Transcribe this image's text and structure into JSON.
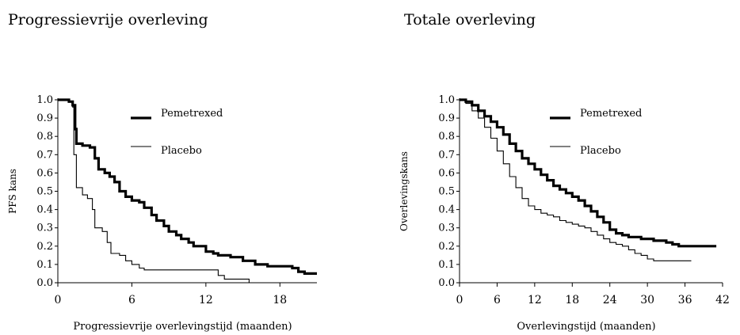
{
  "chart_data": [
    {
      "type": "line",
      "title": "Progressievrije overleving",
      "xlabel": "Progressievrije overlevingstijd (maanden)",
      "ylabel": "PFS kans",
      "xlim": [
        0,
        21
      ],
      "ylim": [
        0,
        1.0
      ],
      "xticks": [
        0,
        6,
        12,
        18
      ],
      "xtick_labels": [
        "0",
        "6",
        "12",
        "18"
      ],
      "yticks": [
        0,
        0.1,
        0.2,
        0.3,
        0.4,
        0.5,
        0.6,
        0.7,
        0.8,
        0.9,
        1.0
      ],
      "ytick_labels": [
        "0.0",
        "0.1",
        "0.2",
        "0.3",
        "0.4",
        "0.5",
        "0.6",
        "0.7",
        "0.8",
        "0.9",
        "1.0"
      ],
      "legend_position": "top-right",
      "grid": false,
      "series": [
        {
          "name": "Pemetrexed",
          "line_width": "thick",
          "color": "#000000",
          "points": [
            [
              0,
              1.0
            ],
            [
              0.5,
              1.0
            ],
            [
              0.9,
              0.99
            ],
            [
              1.2,
              0.97
            ],
            [
              1.4,
              0.84
            ],
            [
              1.5,
              0.76
            ],
            [
              2.0,
              0.75
            ],
            [
              2.6,
              0.74
            ],
            [
              3.0,
              0.68
            ],
            [
              3.3,
              0.62
            ],
            [
              3.8,
              0.6
            ],
            [
              4.2,
              0.58
            ],
            [
              4.6,
              0.55
            ],
            [
              5.0,
              0.5
            ],
            [
              5.5,
              0.47
            ],
            [
              6.0,
              0.45
            ],
            [
              6.6,
              0.44
            ],
            [
              7.0,
              0.41
            ],
            [
              7.6,
              0.37
            ],
            [
              8.0,
              0.34
            ],
            [
              8.6,
              0.31
            ],
            [
              9.0,
              0.28
            ],
            [
              9.6,
              0.26
            ],
            [
              10.0,
              0.24
            ],
            [
              10.6,
              0.22
            ],
            [
              11.0,
              0.2
            ],
            [
              12.0,
              0.17
            ],
            [
              12.6,
              0.16
            ],
            [
              13.0,
              0.15
            ],
            [
              14.0,
              0.14
            ],
            [
              15.0,
              0.12
            ],
            [
              16.0,
              0.1
            ],
            [
              17.0,
              0.09
            ],
            [
              18.5,
              0.09
            ],
            [
              19.0,
              0.08
            ],
            [
              19.5,
              0.06
            ],
            [
              20.0,
              0.05
            ],
            [
              21.0,
              0.05
            ]
          ]
        },
        {
          "name": "Placebo",
          "line_width": "thin",
          "color": "#000000",
          "points": [
            [
              0,
              1.0
            ],
            [
              0.9,
              0.99
            ],
            [
              1.2,
              0.96
            ],
            [
              1.3,
              0.7
            ],
            [
              1.5,
              0.52
            ],
            [
              2.0,
              0.48
            ],
            [
              2.4,
              0.46
            ],
            [
              2.8,
              0.4
            ],
            [
              3.0,
              0.3
            ],
            [
              3.6,
              0.28
            ],
            [
              4.0,
              0.22
            ],
            [
              4.3,
              0.16
            ],
            [
              5.0,
              0.15
            ],
            [
              5.5,
              0.12
            ],
            [
              6.0,
              0.1
            ],
            [
              6.6,
              0.08
            ],
            [
              7.0,
              0.07
            ],
            [
              9.0,
              0.07
            ],
            [
              12.5,
              0.07
            ],
            [
              13.0,
              0.04
            ],
            [
              13.5,
              0.02
            ],
            [
              15.5,
              0.02
            ],
            [
              15.5,
              0.0
            ]
          ]
        }
      ]
    },
    {
      "type": "line",
      "title": "Totale overleving",
      "xlabel": "Overlevingstijd (maanden)",
      "ylabel": "Overlevingskans",
      "xlim": [
        0,
        42
      ],
      "ylim": [
        0,
        1.0
      ],
      "xticks": [
        0,
        6,
        12,
        18,
        24,
        30,
        36,
        42
      ],
      "xtick_labels": [
        "0",
        "6",
        "12",
        "18",
        "24",
        "30",
        "36",
        "42"
      ],
      "yticks": [
        0,
        0.1,
        0.2,
        0.3,
        0.4,
        0.5,
        0.6,
        0.7,
        0.8,
        0.9,
        1.0
      ],
      "ytick_labels": [
        "0.0",
        "0.1",
        "0.2",
        "0.3",
        "0.4",
        "0.5",
        "0.6",
        "0.7",
        "0.8",
        "0.9",
        "1.0"
      ],
      "legend_position": "top-right",
      "grid": false,
      "series": [
        {
          "name": "Pemetrexed",
          "line_width": "thick",
          "color": "#000000",
          "points": [
            [
              0,
              1.0
            ],
            [
              1,
              0.99
            ],
            [
              2,
              0.97
            ],
            [
              3,
              0.94
            ],
            [
              4,
              0.91
            ],
            [
              5,
              0.88
            ],
            [
              6,
              0.85
            ],
            [
              7,
              0.81
            ],
            [
              8,
              0.76
            ],
            [
              9,
              0.72
            ],
            [
              10,
              0.68
            ],
            [
              11,
              0.65
            ],
            [
              12,
              0.62
            ],
            [
              13,
              0.59
            ],
            [
              14,
              0.56
            ],
            [
              15,
              0.53
            ],
            [
              16,
              0.51
            ],
            [
              17,
              0.49
            ],
            [
              18,
              0.47
            ],
            [
              19,
              0.45
            ],
            [
              20,
              0.42
            ],
            [
              21,
              0.39
            ],
            [
              22,
              0.36
            ],
            [
              23,
              0.33
            ],
            [
              24,
              0.29
            ],
            [
              25,
              0.27
            ],
            [
              26,
              0.26
            ],
            [
              27,
              0.25
            ],
            [
              28,
              0.25
            ],
            [
              29,
              0.24
            ],
            [
              30,
              0.24
            ],
            [
              31,
              0.23
            ],
            [
              32,
              0.23
            ],
            [
              33,
              0.22
            ],
            [
              34,
              0.21
            ],
            [
              35,
              0.2
            ],
            [
              37,
              0.2
            ],
            [
              39,
              0.2
            ],
            [
              41,
              0.2
            ]
          ]
        },
        {
          "name": "Placebo",
          "line_width": "thin",
          "color": "#000000",
          "points": [
            [
              0,
              1.0
            ],
            [
              1,
              0.98
            ],
            [
              2,
              0.94
            ],
            [
              3,
              0.9
            ],
            [
              4,
              0.85
            ],
            [
              5,
              0.79
            ],
            [
              6,
              0.72
            ],
            [
              7,
              0.65
            ],
            [
              8,
              0.58
            ],
            [
              9,
              0.52
            ],
            [
              10,
              0.46
            ],
            [
              11,
              0.42
            ],
            [
              12,
              0.4
            ],
            [
              13,
              0.38
            ],
            [
              14,
              0.37
            ],
            [
              15,
              0.36
            ],
            [
              16,
              0.34
            ],
            [
              17,
              0.33
            ],
            [
              18,
              0.32
            ],
            [
              19,
              0.31
            ],
            [
              20,
              0.3
            ],
            [
              21,
              0.28
            ],
            [
              22,
              0.26
            ],
            [
              23,
              0.24
            ],
            [
              24,
              0.22
            ],
            [
              25,
              0.21
            ],
            [
              26,
              0.2
            ],
            [
              27,
              0.18
            ],
            [
              28,
              0.16
            ],
            [
              29,
              0.15
            ],
            [
              30,
              0.13
            ],
            [
              31,
              0.12
            ],
            [
              33,
              0.12
            ],
            [
              35,
              0.12
            ],
            [
              37,
              0.12
            ]
          ]
        }
      ]
    }
  ]
}
